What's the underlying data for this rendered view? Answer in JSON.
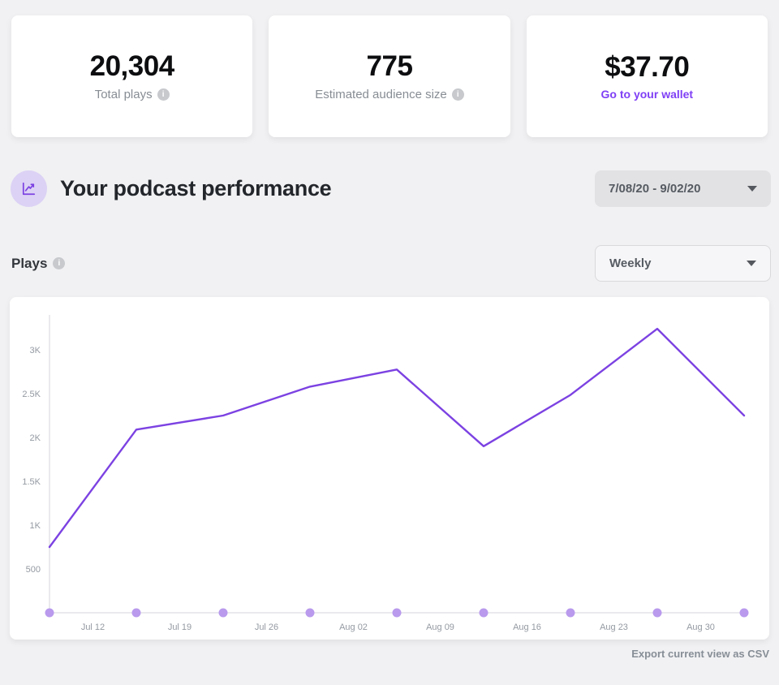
{
  "stat_cards": [
    {
      "value": "20,304",
      "label": "Total plays"
    },
    {
      "value": "775",
      "label": "Estimated audience size"
    },
    {
      "value": "$37.70",
      "link_label": "Go to your wallet"
    }
  ],
  "performance_header": {
    "title": "Your podcast performance",
    "date_range": "7/08/20 - 9/02/20"
  },
  "plays_section": {
    "label": "Plays",
    "interval": "Weekly"
  },
  "footer": {
    "export_label": "Export current view as CSV"
  },
  "icons": {
    "info_glyph": "i"
  },
  "colors": {
    "accent_purple": "#7c42e2",
    "link_purple": "#7f3ff5",
    "icon_circle_bg": "#dcd2f5",
    "page_bg": "#f1f1f3"
  },
  "chart_data": {
    "type": "line",
    "series": [
      {
        "name": "Plays",
        "values": [
          750,
          2090,
          2250,
          2580,
          2775,
          1900,
          2485,
          3240,
          2250
        ]
      }
    ],
    "x_tick_labels": [
      "Jul 12",
      "Jul 19",
      "Jul 26",
      "Aug 02",
      "Aug 09",
      "Aug 16",
      "Aug 23",
      "Aug 30"
    ],
    "y_ticks": [
      {
        "value": 3000,
        "label": "3K"
      },
      {
        "value": 2500,
        "label": "2.5K"
      },
      {
        "value": 2000,
        "label": "2K"
      },
      {
        "value": 1500,
        "label": "1.5K"
      },
      {
        "value": 1000,
        "label": "1K"
      },
      {
        "value": 500,
        "label": "500"
      }
    ],
    "ylim": [
      0,
      3400
    ],
    "grid": false,
    "legend": false,
    "line_color": "#7c42e2",
    "dot_color": "#b99aed",
    "axis_color": "#e4e4e9"
  }
}
